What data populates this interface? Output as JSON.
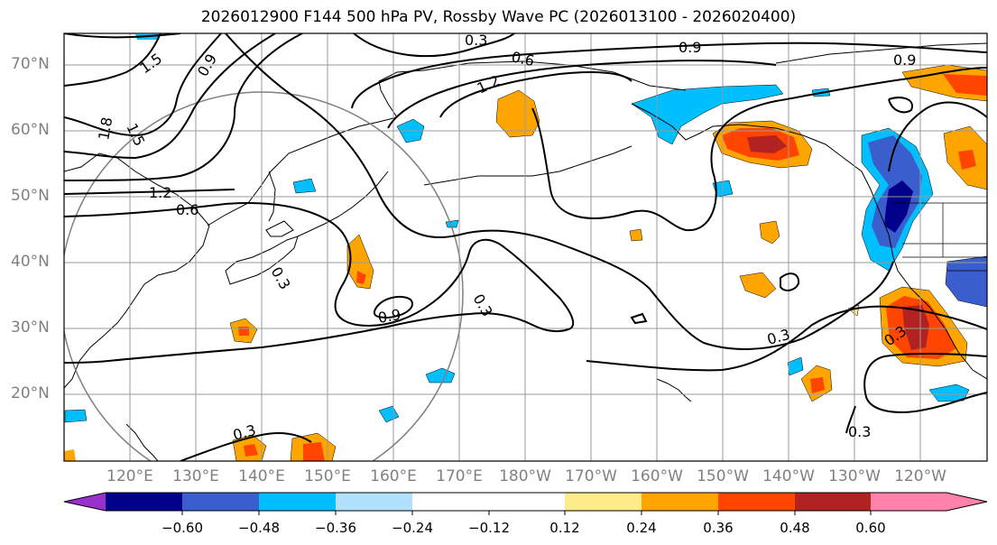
{
  "title": "2026012900 F144 500 hPa PV, Rossby Wave PC (2026013100 - 2026020400)",
  "lat_labels": [
    "70°N",
    "60°N",
    "50°N",
    "40°N",
    "30°N",
    "20°N"
  ],
  "lon_labels": [
    "120°E",
    "130°E",
    "140°E",
    "150°E",
    "160°E",
    "170°E",
    "180°W",
    "170°W",
    "160°W",
    "150°W",
    "140°W",
    "130°W",
    "120°W"
  ],
  "colorbar": {
    "ticks": [
      "−0.60",
      "−0.48",
      "−0.36",
      "−0.24",
      "−0.12",
      "0.12",
      "0.24",
      "0.36",
      "0.48",
      "0.60"
    ],
    "colors": [
      "#9932cc",
      "#00008b",
      "#3a5fcd",
      "#00bfff",
      "#b0e2ff",
      "#ffffff",
      "#ffeb8a",
      "#ffa500",
      "#ff4500",
      "#b22222",
      "#ff82ab"
    ]
  },
  "contour_labels": [
    {
      "text": "0.3",
      "key": "top-center"
    },
    {
      "text": "0.6",
      "key": "north-ridge"
    },
    {
      "text": "0.9",
      "key": "north-ridge-outer"
    },
    {
      "text": "1.2",
      "key": "north-ridge-inner"
    },
    {
      "text": "0.9",
      "key": "top-right"
    },
    {
      "text": "1.5",
      "key": "west-trough-a"
    },
    {
      "text": "0.9",
      "key": "west-trough-b"
    },
    {
      "text": "1.5",
      "key": "west-trough-c"
    },
    {
      "text": "1.8",
      "key": "west-trough-d"
    },
    {
      "text": "1.2",
      "key": "west-mid"
    },
    {
      "text": "0.6",
      "key": "west-mid-lower"
    },
    {
      "text": "0.3",
      "key": "japan"
    },
    {
      "text": "0.9",
      "key": "central-pacific"
    },
    {
      "text": "0.3",
      "key": "central-pacific-2"
    },
    {
      "text": "0.3",
      "key": "east-pacific"
    },
    {
      "text": "0.3",
      "key": "east-coast"
    },
    {
      "text": "0.3",
      "key": "south-east"
    },
    {
      "text": "0.3",
      "key": "south-west"
    }
  ]
}
